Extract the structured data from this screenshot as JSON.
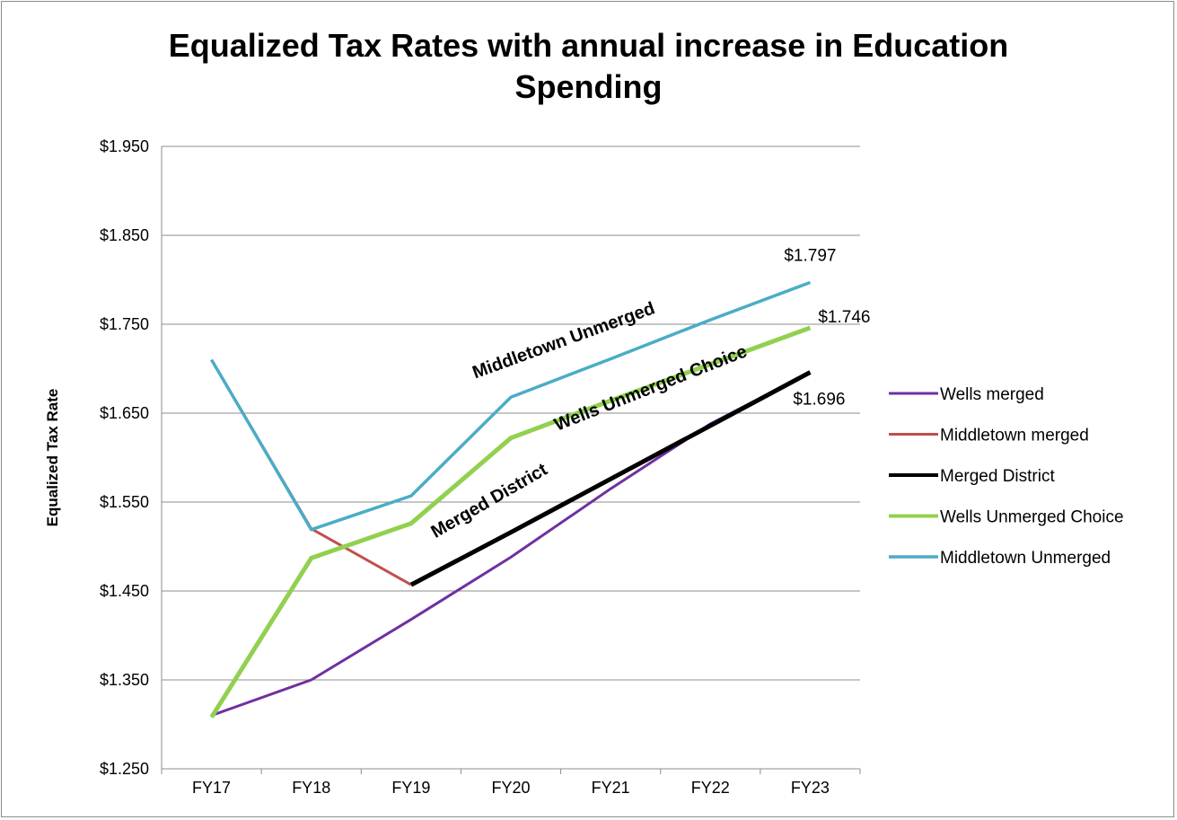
{
  "chart_data": {
    "type": "line",
    "title": "Equalized Tax Rates with annual increase in Education Spending",
    "title_lines": [
      "Equalized Tax Rates with annual increase in Education",
      "Spending"
    ],
    "ylabel": "Equalized Tax Rate",
    "xlabel": "",
    "categories": [
      "FY17",
      "FY18",
      "FY19",
      "FY20",
      "FY21",
      "FY22",
      "FY23"
    ],
    "ylim": [
      1.25,
      1.95
    ],
    "yticks": [
      1.25,
      1.35,
      1.45,
      1.55,
      1.65,
      1.75,
      1.85,
      1.95
    ],
    "ytick_labels": [
      "$1.250",
      "$1.350",
      "$1.450",
      "$1.550",
      "$1.650",
      "$1.750",
      "$1.850",
      "$1.950"
    ],
    "grid": true,
    "legend_position": "right",
    "series": [
      {
        "name": "Wells merged",
        "color": "#7030a0",
        "width": 3,
        "values": [
          1.31,
          1.35,
          1.418,
          1.488,
          1.565,
          1.638,
          1.696
        ]
      },
      {
        "name": "Middletown merged",
        "color": "#c0504d",
        "width": 3,
        "values": [
          1.71,
          1.52,
          1.457,
          null,
          null,
          null,
          null
        ]
      },
      {
        "name": "Merged District",
        "color": "#000000",
        "width": 5,
        "values": [
          null,
          null,
          1.457,
          1.516,
          1.576,
          1.636,
          1.696
        ]
      },
      {
        "name": "Wells Unmerged Choice",
        "color": "#92d050",
        "width": 5,
        "values": [
          1.308,
          1.487,
          1.526,
          1.622,
          1.664,
          1.705,
          1.746
        ]
      },
      {
        "name": "Middletown Unmerged",
        "color": "#4bacc6",
        "width": 3.5,
        "values": [
          1.71,
          1.519,
          1.557,
          1.668,
          1.711,
          1.755,
          1.797
        ]
      }
    ],
    "data_labels": [
      {
        "series": "Middletown Unmerged",
        "category": "FY23",
        "text": "$1.797"
      },
      {
        "series": "Wells Unmerged Choice",
        "category": "FY23",
        "text": "$1.746"
      },
      {
        "series": "Merged District",
        "category": "FY23",
        "text": "$1.696"
      }
    ],
    "annotations": [
      {
        "text": "Middletown  Unmerged"
      },
      {
        "text": "Wells Unmerged Choice"
      },
      {
        "text": "Merged District"
      }
    ]
  }
}
